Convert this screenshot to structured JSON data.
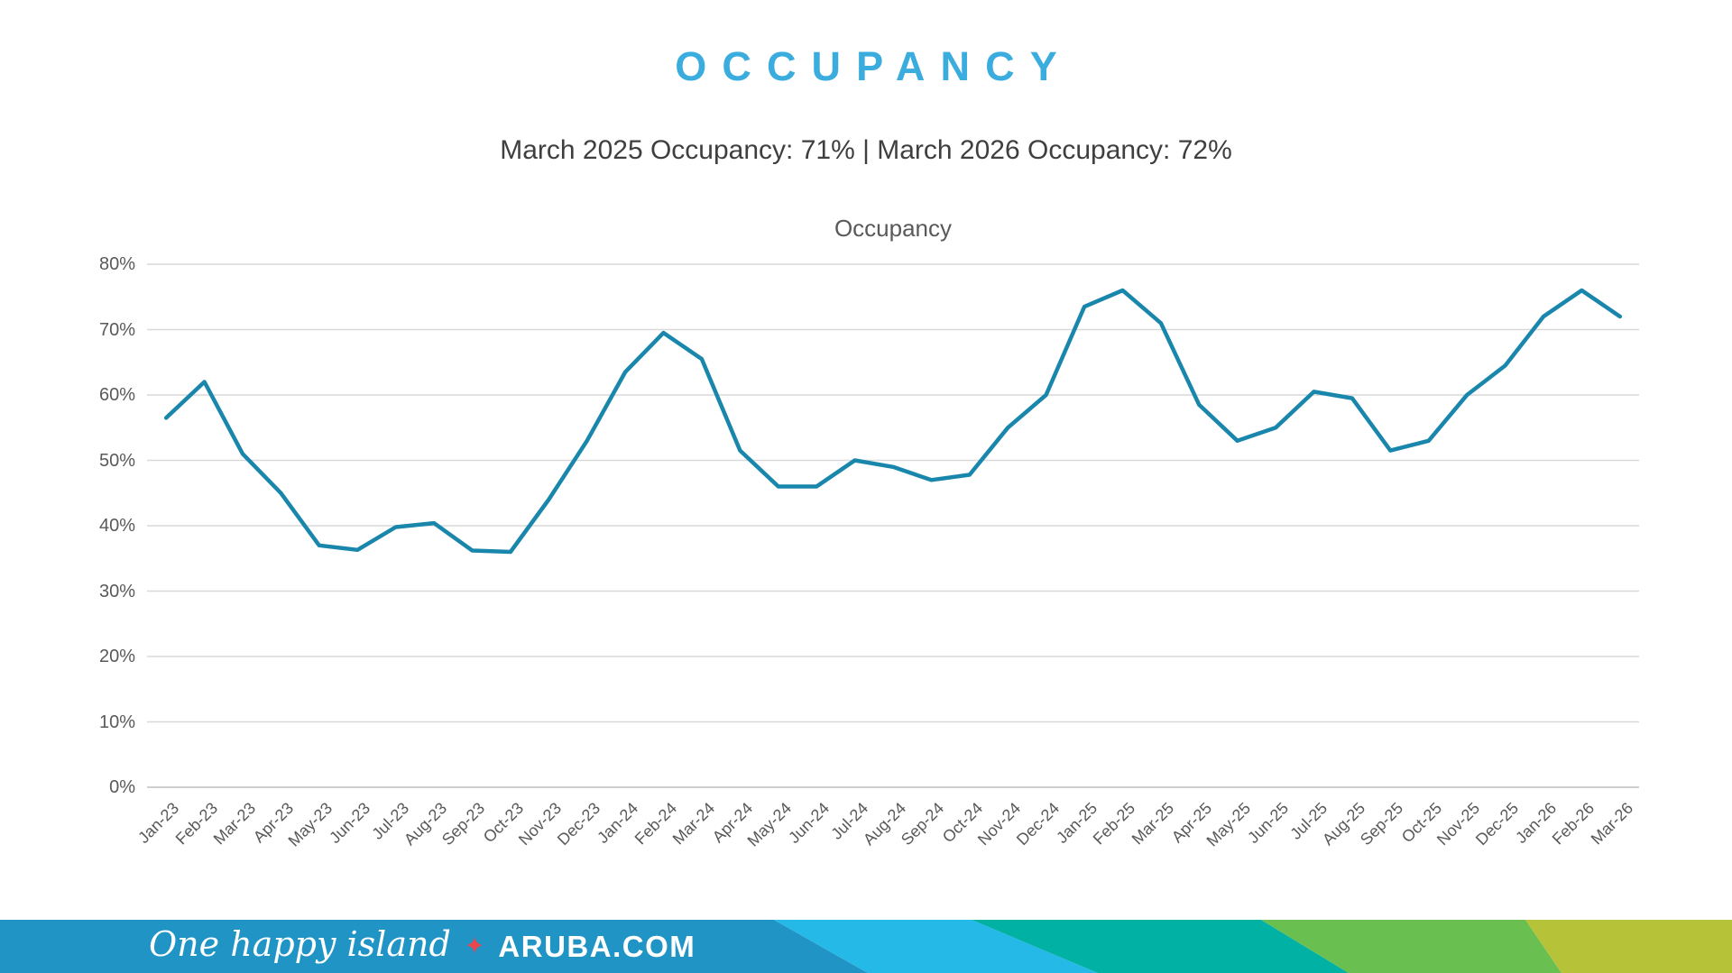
{
  "header": {
    "title": "OCCUPANCY",
    "subtitle": "March 2025 Occupancy: 71% | March 2026 Occupancy: 72%"
  },
  "chart_data": {
    "type": "line",
    "title": "Occupancy",
    "categories": [
      "Jan-23",
      "Feb-23",
      "Mar-23",
      "Apr-23",
      "May-23",
      "Jun-23",
      "Jul-23",
      "Aug-23",
      "Sep-23",
      "Oct-23",
      "Nov-23",
      "Dec-23",
      "Jan-24",
      "Feb-24",
      "Mar-24",
      "Apr-24",
      "May-24",
      "Jun-24",
      "Jul-24",
      "Aug-24",
      "Sep-24",
      "Oct-24",
      "Nov-24",
      "Dec-24",
      "Jan-25",
      "Feb-25",
      "Mar-25",
      "Apr-25",
      "May-25",
      "Jun-25",
      "Jul-25",
      "Aug-25",
      "Sep-25",
      "Oct-25",
      "Nov-25",
      "Dec-25",
      "Jan-26",
      "Feb-26",
      "Mar-26"
    ],
    "values": [
      56.5,
      62,
      51,
      45,
      37,
      36.3,
      39.8,
      40.4,
      36.2,
      36,
      44,
      53,
      63.5,
      69.5,
      65.5,
      51.5,
      46,
      46,
      50,
      49,
      47,
      47.8,
      55,
      60,
      73.5,
      76,
      71,
      58.5,
      53,
      55,
      60.5,
      59.5,
      51.5,
      53,
      60,
      64.5,
      72,
      76,
      72
    ],
    "ylim": [
      0,
      80
    ],
    "y_tick_step": 10,
    "y_tick_suffix": "%",
    "xlabel": "",
    "ylabel": "",
    "grid": true,
    "legend": "none"
  },
  "colors": {
    "title_accent": "#3BACDE",
    "subtitle_text": "#3F3F3F",
    "axis_text": "#595959",
    "gridline": "#D9D9D9",
    "axis_line": "#BFBFBF",
    "series_line": "#1986AC"
  },
  "footer": {
    "tagline": "One happy island",
    "star_glyph": "✦",
    "site": "ARUBA.COM",
    "star_color": "#E9464E",
    "band_colors": [
      "#2095C5",
      "#25B9E8",
      "#00B1A4",
      "#69BF50",
      "#B6C238"
    ]
  }
}
